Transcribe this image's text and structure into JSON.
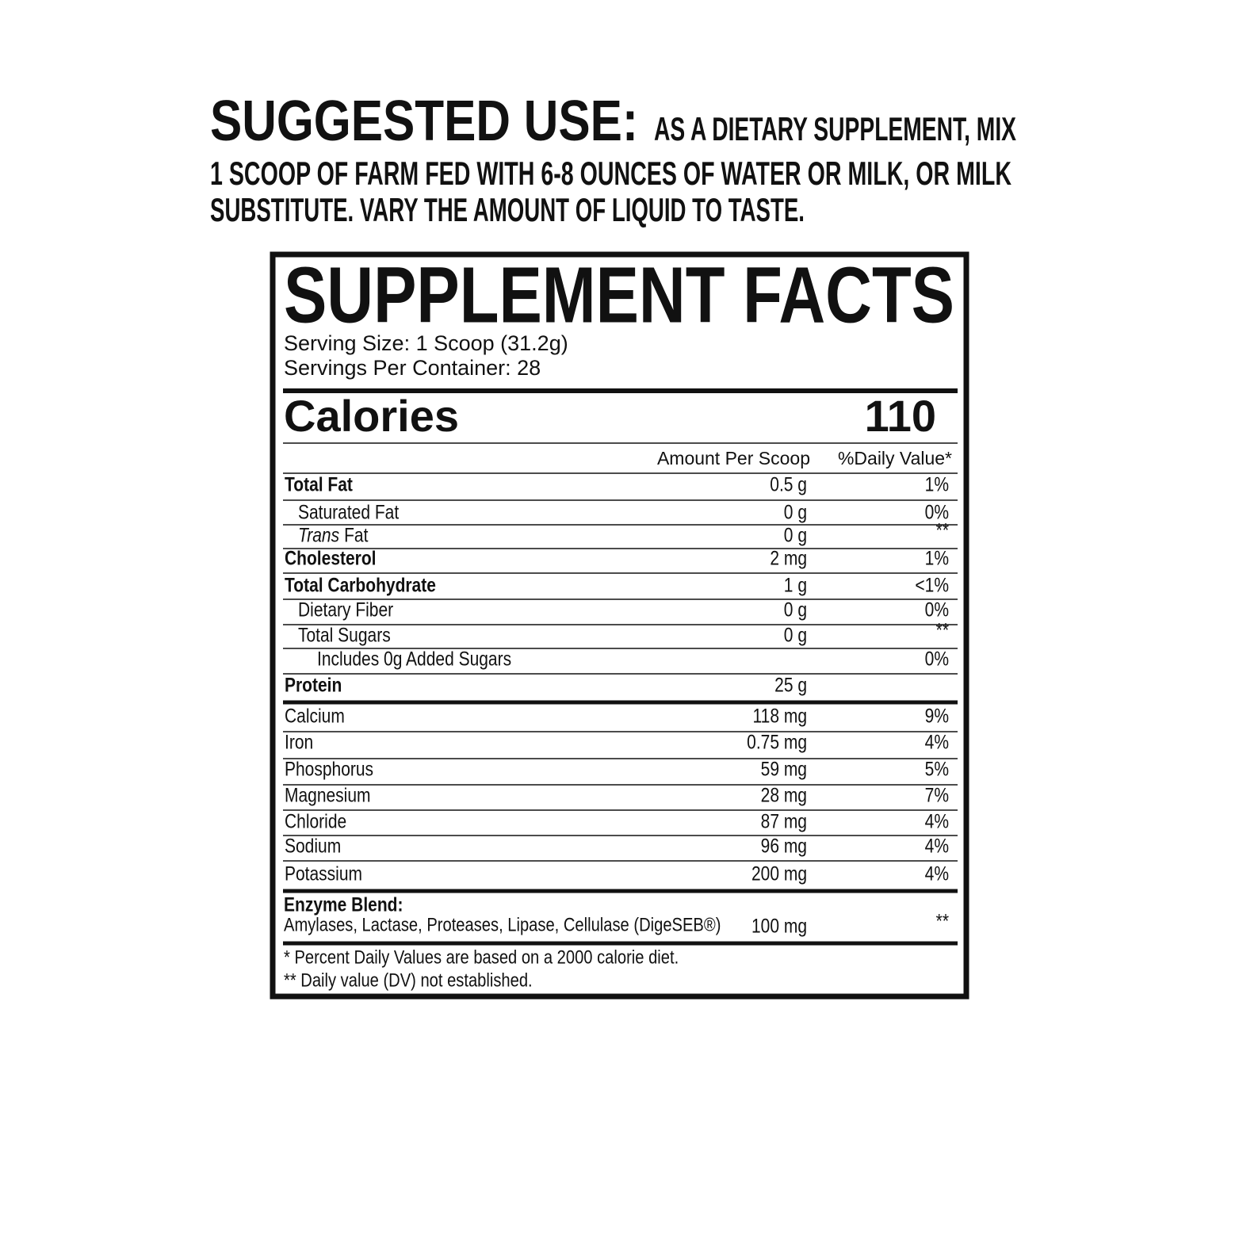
{
  "suggested_use": {
    "heading": "SUGGESTED USE:",
    "lines": [
      "AS A DIETARY SUPPLEMENT, MIX",
      "1 SCOOP OF FARM FED WITH 6-8 OUNCES OF WATER OR MILK, OR MILK",
      "SUBSTITUTE. VARY THE AMOUNT OF LIQUID TO TASTE."
    ]
  },
  "facts": {
    "title": "SUPPLEMENT FACTS",
    "serving_size": "Serving Size: 1 Scoop (31.2g)",
    "servings_per_container": "Servings Per Container: 28",
    "calories_label": "Calories",
    "calories": "110",
    "column_headers": [
      "Amount Per Scoop",
      "%Daily Value*"
    ],
    "rows": [
      {
        "name": "Total Fat",
        "amount": "0.5 g",
        "dv": "1%",
        "bold": true,
        "indent": 0
      },
      {
        "name": "Saturated Fat",
        "amount": "0 g",
        "dv": "0%",
        "bold": false,
        "indent": 1
      },
      {
        "name_italic": "Trans",
        "name": "Fat",
        "amount": "0 g",
        "dv": "**",
        "bold": false,
        "indent": 1
      },
      {
        "name": "Cholesterol",
        "amount": "2 mg",
        "dv": "1%",
        "bold": true,
        "indent": 0
      },
      {
        "name": "Total Carbohydrate",
        "amount": "1 g",
        "dv": "<1%",
        "bold": true,
        "indent": 0
      },
      {
        "name": "Dietary Fiber",
        "amount": "0 g",
        "dv": "0%",
        "bold": false,
        "indent": 1
      },
      {
        "name": "Total Sugars",
        "amount": "0 g",
        "dv": "**",
        "bold": false,
        "indent": 1
      },
      {
        "name": "Includes 0g Added Sugars",
        "dv": "0%",
        "bold": false,
        "indent": 2
      },
      {
        "name": "Protein",
        "amount": "25 g",
        "bold": true,
        "indent": 0
      },
      {
        "name": "Calcium",
        "amount": "118 mg",
        "dv": "9%",
        "bold": false,
        "indent": 0
      },
      {
        "name": "Iron",
        "amount": "0.75 mg",
        "dv": "4%",
        "bold": false,
        "indent": 0
      },
      {
        "name": "Phosphorus",
        "amount": "59 mg",
        "dv": "5%",
        "bold": false,
        "indent": 0
      },
      {
        "name": "Magnesium",
        "amount": "28 mg",
        "dv": "7%",
        "bold": false,
        "indent": 0
      },
      {
        "name": "Chloride",
        "amount": "87 mg",
        "dv": "4%",
        "bold": false,
        "indent": 0
      },
      {
        "name": "Sodium",
        "amount": "96 mg",
        "dv": "4%",
        "bold": false,
        "indent": 0
      },
      {
        "name": "Potassium",
        "amount": "200 mg",
        "dv": "4%",
        "bold": false,
        "indent": 0
      }
    ],
    "blend": {
      "name": "Enzyme Blend:",
      "ingredients": "Amylases, Lactase, Proteases, Lipase, Cellulase (DigeSEB®)",
      "amount": "100 mg",
      "dv": "**"
    },
    "footnotes": [
      "* Percent Daily Values are based on a 2000 calorie diet.",
      "** Daily value (DV) not established."
    ]
  }
}
